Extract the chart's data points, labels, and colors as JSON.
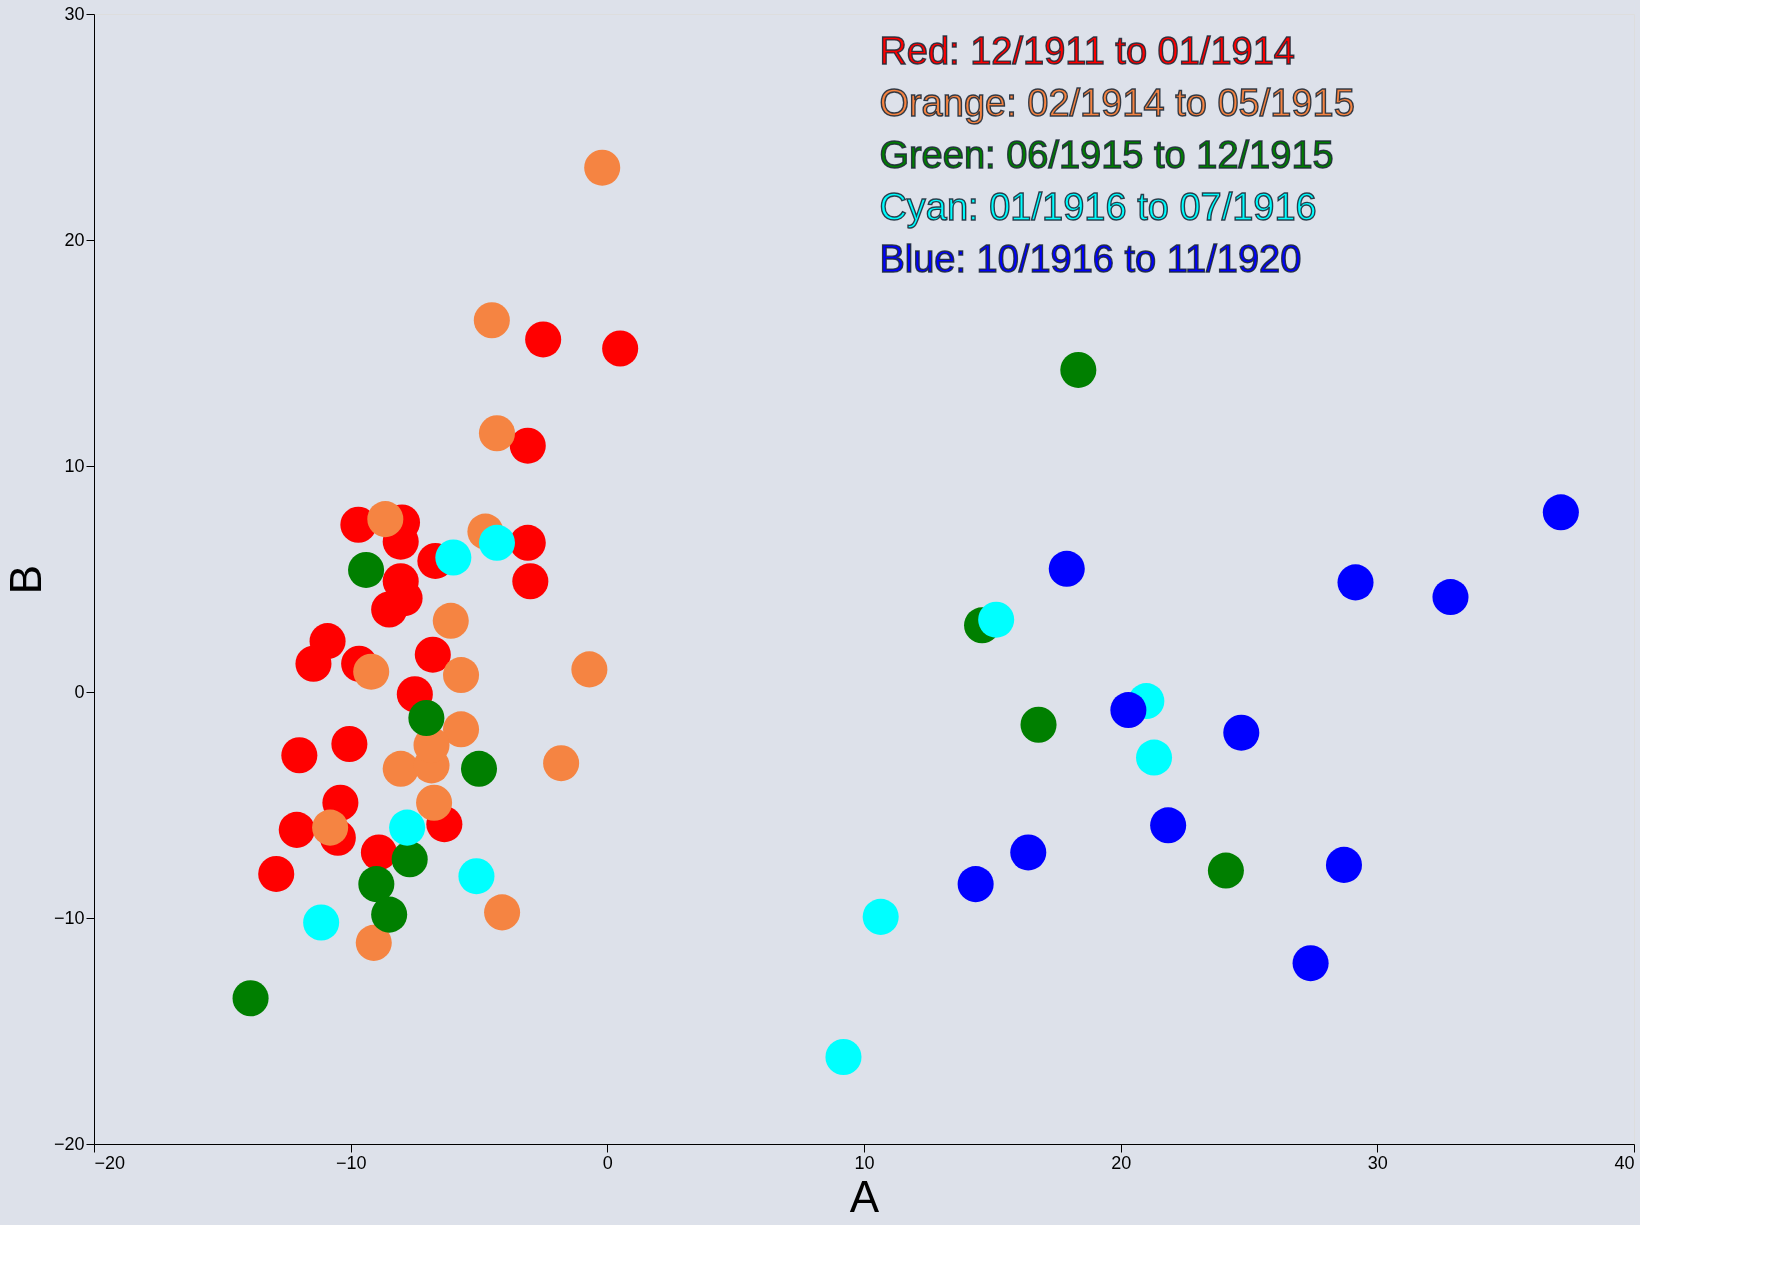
{
  "chart_data": {
    "type": "scatter",
    "xlabel": "A",
    "ylabel": "B",
    "xlim": [
      -20,
      40
    ],
    "ylim": [
      -20,
      30
    ],
    "xticks": [
      -20,
      -10,
      0,
      10,
      20,
      30,
      40
    ],
    "yticks": [
      -20,
      -10,
      0,
      10,
      20,
      30
    ],
    "grid": false,
    "legend": "top right",
    "marker": "circle",
    "series": [
      {
        "name": "Red: 12/1911 to 01/1914",
        "color": "#ff0000",
        "x": [
          -2.5,
          0.5,
          -3.1,
          -3.1,
          -3.0,
          -9.7,
          -8.0,
          -8.05,
          -6.7,
          -8.05,
          -7.9,
          -8.5,
          -10.9,
          -11.45,
          -9.67,
          -6.8,
          -7.5,
          -12.0,
          -10.05,
          -10.4,
          -12.1,
          -10.5,
          -12.9,
          -8.9,
          -6.35
        ],
        "values": [
          15.6,
          15.2,
          10.9,
          6.6,
          4.9,
          7.4,
          7.5,
          6.65,
          5.8,
          4.9,
          4.15,
          3.65,
          2.25,
          1.25,
          1.25,
          1.65,
          -0.1,
          -2.8,
          -2.3,
          -4.9,
          -6.1,
          -6.45,
          -8.05,
          -7.1,
          -5.85
        ]
      },
      {
        "name": "Orange: 02/1914 to 05/1915",
        "color": "#f58442",
        "x": [
          -0.2,
          -4.5,
          -4.3,
          -8.65,
          -4.75,
          -6.1,
          -5.7,
          -9.2,
          -0.7,
          -5.7,
          -1.8,
          -8.05,
          -6.85,
          -6.85,
          -6.75,
          -10.8,
          -9.1,
          -4.1
        ],
        "values": [
          23.2,
          16.45,
          11.45,
          7.65,
          7.1,
          3.15,
          0.75,
          0.9,
          1.0,
          -1.65,
          -3.15,
          -3.4,
          -3.25,
          -2.35,
          -4.9,
          -6.0,
          -11.1,
          -9.75
        ]
      },
      {
        "name": "Green: 06/1915 to 12/1915",
        "color": "#007f00",
        "x": [
          18.35,
          -9.4,
          -7.05,
          -5.0,
          14.6,
          16.8,
          24.1,
          -7.7,
          -9.0,
          -8.5,
          -13.9
        ],
        "values": [
          14.25,
          5.4,
          -1.15,
          -3.4,
          2.95,
          -1.45,
          -7.9,
          -7.4,
          -8.5,
          -9.85,
          -13.55
        ]
      },
      {
        "name": "Cyan: 01/1916 to 07/1916",
        "color": "#00ffff",
        "x": [
          -6.0,
          -4.3,
          15.15,
          21.0,
          21.3,
          -7.8,
          -5.1,
          -11.15,
          10.65,
          9.2
        ],
        "values": [
          5.95,
          6.6,
          3.2,
          -0.4,
          -2.9,
          -6.0,
          -8.15,
          -10.2,
          -9.95,
          -16.15
        ]
      },
      {
        "name": "Blue: 10/1916 to 11/1920",
        "color": "#0000ff",
        "x": [
          37.15,
          17.9,
          29.15,
          32.85,
          20.3,
          24.7,
          21.85,
          16.4,
          14.35,
          28.7,
          27.4
        ],
        "values": [
          7.95,
          5.45,
          4.85,
          4.2,
          -0.8,
          -1.8,
          -5.9,
          -7.1,
          -8.5,
          -7.65,
          -12.0
        ]
      }
    ]
  }
}
